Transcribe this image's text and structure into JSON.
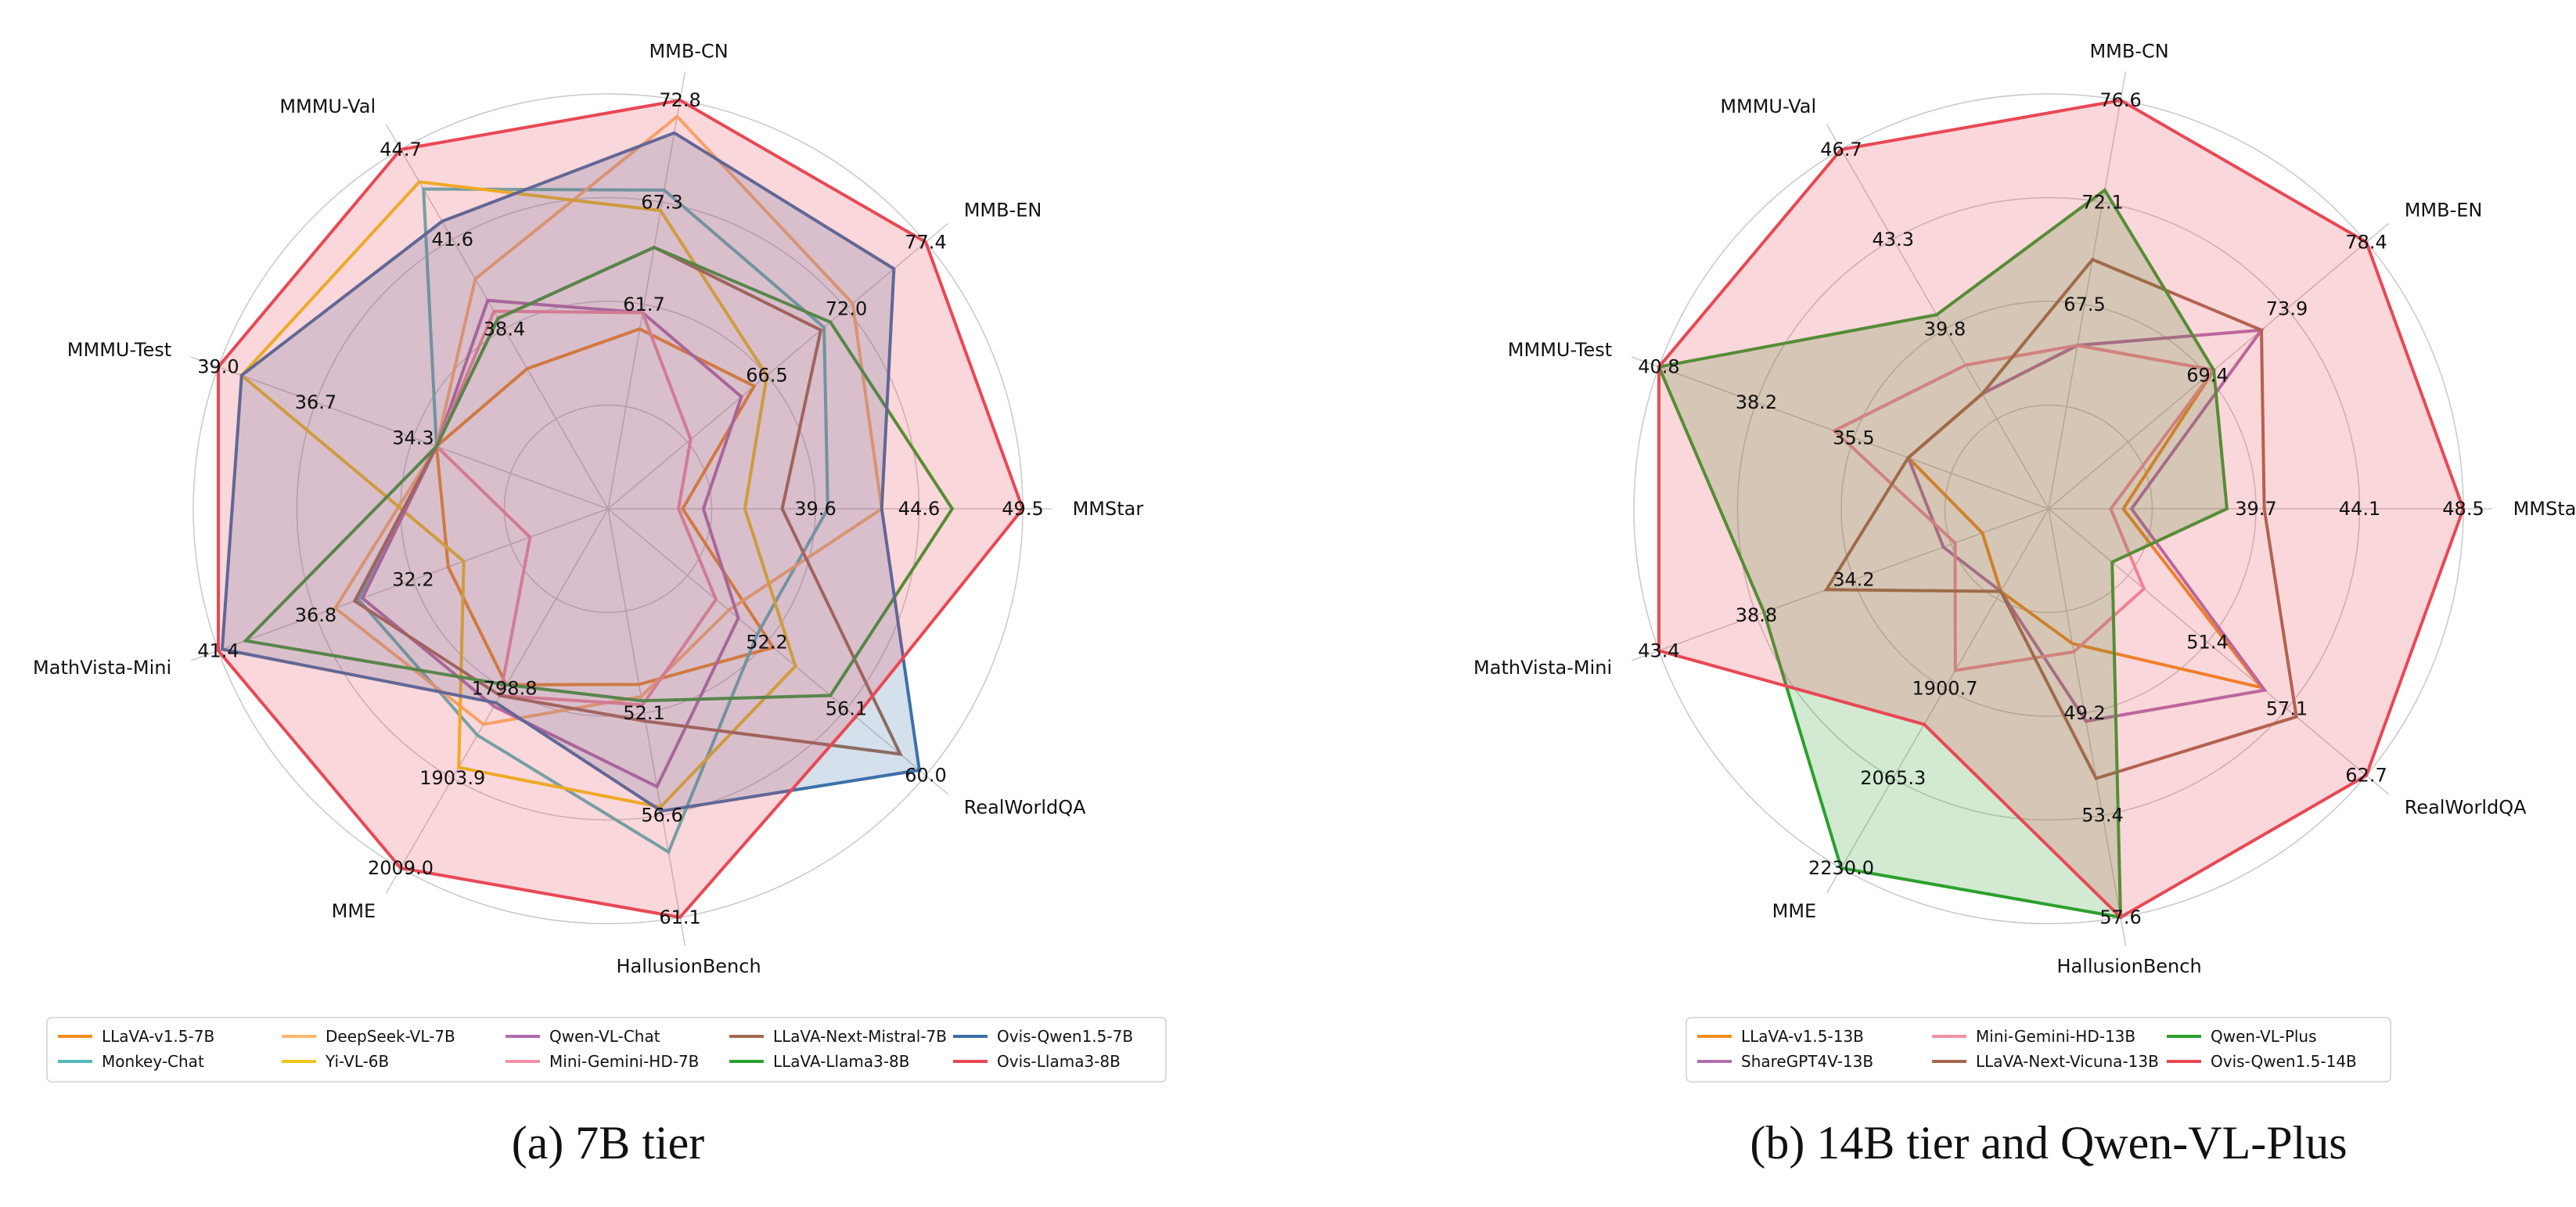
{
  "chart_data": [
    {
      "type": "radar",
      "caption": "(a) 7B tier",
      "axes": [
        "MMStar",
        "MMB-EN",
        "MMB-CN",
        "MMMU-Val",
        "MMMU-Test",
        "MathVista-Mini",
        "MME",
        "HallusionBench",
        "RealWorldQA"
      ],
      "ticks": [
        [
          "39.6",
          "44.6",
          "49.5"
        ],
        [
          "66.5",
          "72.0",
          "77.4"
        ],
        [
          "61.7",
          "67.3",
          "72.8"
        ],
        [
          "38.4",
          "41.6",
          "44.7"
        ],
        [
          "34.3",
          "36.7",
          "39.0"
        ],
        [
          "32.2",
          "36.8",
          "41.4"
        ],
        [
          "1798.8",
          "1903.9",
          "2009.0"
        ],
        [
          "52.1",
          "56.6",
          "61.1"
        ],
        [
          "52.2",
          "56.1",
          "60.0"
        ]
      ],
      "grid": true,
      "legend": "bottom",
      "series": [
        {
          "name": "LLaVA-v1.5-7B",
          "color": "#f28e1c",
          "fill": false,
          "values": [
            0.18,
            0.46,
            0.44,
            0.39,
            0.44,
            0.41,
            0.49,
            0.43,
            0.52
          ]
        },
        {
          "name": "Monkey-Chat",
          "color": "#56b8b8",
          "fill": false,
          "values": [
            0.53,
            0.68,
            0.78,
            0.89,
            0.44,
            0.64,
            0.63,
            0.84,
            0.47
          ]
        },
        {
          "name": "DeepSeek-VL-7B",
          "color": "#ffb86e",
          "fill": false,
          "values": [
            0.66,
            0.77,
            0.96,
            0.64,
            0.44,
            0.7,
            0.6,
            0.46,
            0.38
          ]
        },
        {
          "name": "Yi-VL-6B",
          "color": "#f0c419",
          "fill": false,
          "values": [
            0.33,
            0.5,
            0.73,
            0.91,
            0.94,
            0.37,
            0.72,
            0.73,
            0.59
          ]
        },
        {
          "name": "Qwen-VL-Chat",
          "color": "#b06db0",
          "fill": false,
          "values": [
            0.23,
            0.42,
            0.48,
            0.58,
            0.44,
            0.63,
            0.55,
            0.68,
            0.41
          ]
        },
        {
          "name": "Mini-Gemini-HD-7B",
          "color": "#f590a5",
          "fill": false,
          "values": [
            0.17,
            0.26,
            0.48,
            0.55,
            0.44,
            0.2,
            0.52,
            0.48,
            0.34
          ]
        },
        {
          "name": "LLaVA-Next-Mistral-7B",
          "color": "#a5694e",
          "fill": false,
          "values": [
            0.42,
            0.67,
            0.64,
            0.53,
            0.44,
            0.65,
            0.52,
            0.52,
            0.92
          ]
        },
        {
          "name": "LLaVA-Llama3-8B",
          "color": "#2ca02c",
          "fill": false,
          "values": [
            0.83,
            0.7,
            0.64,
            0.53,
            0.44,
            0.93,
            0.49,
            0.47,
            0.7
          ]
        },
        {
          "name": "Ovis-Qwen1.5-7B",
          "color": "#3c70a8",
          "fill": true,
          "values": [
            0.66,
            0.9,
            0.92,
            0.8,
            0.94,
            0.99,
            0.54,
            0.74,
            0.98
          ]
        },
        {
          "name": "Ovis-Llama3-8B",
          "color": "#e84855",
          "fill": true,
          "values": [
            1.0,
            1.0,
            1.0,
            1.0,
            1.0,
            1.0,
            1.0,
            1.0,
            0.78
          ]
        }
      ]
    },
    {
      "type": "radar",
      "caption": "(b) 14B tier and Qwen-VL-Plus",
      "axes": [
        "MMStar",
        "MMB-EN",
        "MMB-CN",
        "MMMU-Val",
        "MMMU-Test",
        "MathVista-Mini",
        "MME",
        "HallusionBench",
        "RealWorldQA"
      ],
      "ticks": [
        [
          "39.7",
          "44.1",
          "48.5"
        ],
        [
          "69.4",
          "73.9",
          "78.4"
        ],
        [
          "67.5",
          "72.1",
          "76.6"
        ],
        [
          "39.8",
          "43.3",
          "46.7"
        ],
        [
          "35.5",
          "38.2",
          "40.8"
        ],
        [
          "34.2",
          "38.8",
          "43.4"
        ],
        [
          "1900.7",
          "2065.3",
          "2230.0"
        ],
        [
          "49.2",
          "53.4",
          "57.6"
        ],
        [
          "51.4",
          "57.1",
          "62.7"
        ]
      ],
      "grid": true,
      "legend": "bottom",
      "series": [
        {
          "name": "LLaVA-v1.5-13B",
          "color": "#f28e1c",
          "fill": false,
          "values": [
            0.18,
            0.52,
            0.4,
            0.32,
            0.36,
            0.17,
            0.23,
            0.33,
            0.67
          ]
        },
        {
          "name": "ShareGPT4V-13B",
          "color": "#b06db0",
          "fill": false,
          "values": [
            0.2,
            0.67,
            0.4,
            0.32,
            0.36,
            0.27,
            0.23,
            0.52,
            0.68
          ]
        },
        {
          "name": "Mini-Gemini-HD-13B",
          "color": "#f590a5",
          "fill": false,
          "values": [
            0.15,
            0.52,
            0.4,
            0.4,
            0.55,
            0.24,
            0.45,
            0.35,
            0.3
          ]
        },
        {
          "name": "LLaVA-Next-Vicuna-13B",
          "color": "#a5694e",
          "fill": false,
          "values": [
            0.52,
            0.67,
            0.61,
            0.32,
            0.36,
            0.57,
            0.23,
            0.66,
            0.78
          ]
        },
        {
          "name": "Qwen-VL-Plus",
          "color": "#2ca02c",
          "fill": true,
          "values": [
            0.43,
            0.52,
            0.78,
            0.54,
            1.0,
            0.73,
            1.0,
            1.0,
            0.2
          ]
        },
        {
          "name": "Ovis-Qwen1.5-14B",
          "color": "#e84855",
          "fill": true,
          "values": [
            1.0,
            1.0,
            1.0,
            1.0,
            1.0,
            1.0,
            0.6,
            1.0,
            1.0
          ]
        }
      ]
    }
  ]
}
